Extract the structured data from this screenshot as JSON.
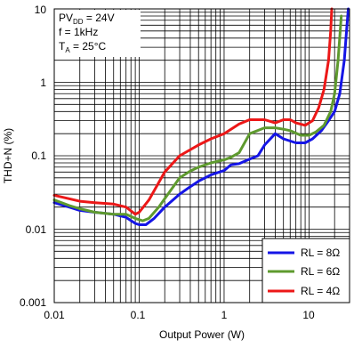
{
  "chart_data": {
    "type": "line",
    "xlabel": "Output Power (W)",
    "ylabel": "THD+N (%)",
    "xscale": "log",
    "yscale": "log",
    "xlim": [
      0.01,
      30
    ],
    "ylim": [
      0.001,
      10
    ],
    "grid": true,
    "x_ticks": [
      "0.01",
      "0.1",
      "1",
      "10"
    ],
    "y_ticks": [
      "10",
      "1",
      "0.1",
      "0.01",
      "0.001"
    ],
    "conditions": {
      "line1_main": "PV",
      "line1_sub": "DD",
      "line1_rest": " = 24V",
      "line2": "f = 1kHz",
      "line3_main": "T",
      "line3_sub": "A",
      "line3_rest": " = 25°C"
    },
    "legend_position": "bottom-right",
    "series": [
      {
        "name": "RL = 8Ω",
        "color": "#1515e6",
        "points": [
          [
            0.01,
            0.023
          ],
          [
            0.015,
            0.02
          ],
          [
            0.02,
            0.018
          ],
          [
            0.03,
            0.017
          ],
          [
            0.05,
            0.016
          ],
          [
            0.07,
            0.0145
          ],
          [
            0.09,
            0.012
          ],
          [
            0.1,
            0.0115
          ],
          [
            0.12,
            0.0115
          ],
          [
            0.15,
            0.014
          ],
          [
            0.2,
            0.02
          ],
          [
            0.3,
            0.03
          ],
          [
            0.4,
            0.038
          ],
          [
            0.5,
            0.045
          ],
          [
            0.7,
            0.055
          ],
          [
            1.0,
            0.063
          ],
          [
            1.2,
            0.075
          ],
          [
            1.5,
            0.078
          ],
          [
            2.0,
            0.09
          ],
          [
            2.5,
            0.1
          ],
          [
            3.0,
            0.14
          ],
          [
            4.0,
            0.2
          ],
          [
            5.0,
            0.17
          ],
          [
            7.0,
            0.15
          ],
          [
            9.0,
            0.15
          ],
          [
            11.0,
            0.17
          ],
          [
            14.0,
            0.22
          ],
          [
            17.0,
            0.3
          ],
          [
            20.0,
            0.4
          ],
          [
            23.0,
            0.7
          ],
          [
            26.0,
            2.0
          ],
          [
            28.0,
            6.0
          ],
          [
            29.0,
            10.0
          ]
        ]
      },
      {
        "name": "RL = 6Ω",
        "color": "#5e9a2e",
        "points": [
          [
            0.01,
            0.025
          ],
          [
            0.015,
            0.021
          ],
          [
            0.02,
            0.019
          ],
          [
            0.03,
            0.017
          ],
          [
            0.05,
            0.016
          ],
          [
            0.07,
            0.016
          ],
          [
            0.09,
            0.014
          ],
          [
            0.11,
            0.013
          ],
          [
            0.13,
            0.014
          ],
          [
            0.17,
            0.02
          ],
          [
            0.2,
            0.026
          ],
          [
            0.3,
            0.05
          ],
          [
            0.4,
            0.062
          ],
          [
            0.5,
            0.07
          ],
          [
            0.7,
            0.08
          ],
          [
            1.0,
            0.088
          ],
          [
            1.2,
            0.095
          ],
          [
            1.5,
            0.11
          ],
          [
            2.0,
            0.2
          ],
          [
            3.0,
            0.24
          ],
          [
            4.0,
            0.24
          ],
          [
            5.0,
            0.23
          ],
          [
            6.0,
            0.22
          ],
          [
            8.0,
            0.19
          ],
          [
            10.0,
            0.19
          ],
          [
            12.0,
            0.21
          ],
          [
            15.0,
            0.26
          ],
          [
            18.0,
            0.4
          ],
          [
            20.0,
            0.7
          ],
          [
            22.0,
            2.0
          ],
          [
            24.0,
            8.0
          ]
        ]
      },
      {
        "name": "RL = 4Ω",
        "color": "#ec1717",
        "points": [
          [
            0.01,
            0.029
          ],
          [
            0.015,
            0.026
          ],
          [
            0.02,
            0.024
          ],
          [
            0.03,
            0.023
          ],
          [
            0.05,
            0.022
          ],
          [
            0.07,
            0.02
          ],
          [
            0.09,
            0.016
          ],
          [
            0.1,
            0.017
          ],
          [
            0.13,
            0.025
          ],
          [
            0.2,
            0.06
          ],
          [
            0.3,
            0.1
          ],
          [
            0.5,
            0.14
          ],
          [
            0.7,
            0.17
          ],
          [
            1.0,
            0.2
          ],
          [
            1.5,
            0.27
          ],
          [
            2.0,
            0.31
          ],
          [
            3.0,
            0.31
          ],
          [
            4.0,
            0.28
          ],
          [
            5.0,
            0.31
          ],
          [
            6.0,
            0.31
          ],
          [
            7.0,
            0.28
          ],
          [
            9.0,
            0.26
          ],
          [
            11.0,
            0.3
          ],
          [
            13.0,
            0.45
          ],
          [
            15.0,
            0.8
          ],
          [
            17.0,
            2.0
          ],
          [
            18.0,
            5.0
          ],
          [
            18.5,
            10.0
          ]
        ]
      }
    ]
  }
}
